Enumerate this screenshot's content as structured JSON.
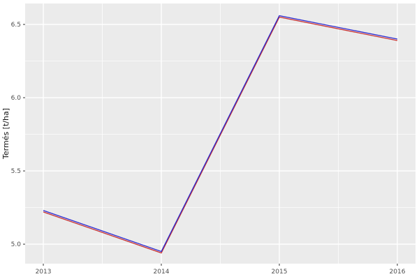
{
  "figure": {
    "background": "#FFFFFF",
    "panel_background": "#EBEBEB",
    "grid_color": "#FFFFFF",
    "tick_color": "#333333",
    "tick_label_color": "#4D4D4D",
    "axis_title_color": "#141414"
  },
  "chart_data": {
    "type": "line",
    "title": "",
    "xlabel": "",
    "ylabel": "Termés [t/ha]",
    "x": [
      2013,
      2014,
      2015,
      2016
    ],
    "x_tick_labels": [
      "2013",
      "2014",
      "2015",
      "2016"
    ],
    "y_tick_values": [
      5.0,
      5.5,
      6.0,
      6.5
    ],
    "y_tick_labels": [
      "5.0",
      "5.5",
      "6.0",
      "6.5"
    ],
    "x_minor": [
      2013.5,
      2014.5,
      2015.5
    ],
    "y_minor": [
      5.25,
      5.75,
      6.25
    ],
    "xlim": [
      2012.846,
      2016.154
    ],
    "ylim": [
      4.867,
      6.643
    ],
    "grid": "major+minor",
    "legend": "none",
    "series": [
      {
        "name": "red-series",
        "color": "#C83232",
        "values": [
          5.22,
          4.94,
          6.55,
          6.39
        ]
      },
      {
        "name": "blue-series",
        "color": "#2A2AD0",
        "values": [
          5.23,
          4.95,
          6.56,
          6.4
        ]
      }
    ]
  }
}
